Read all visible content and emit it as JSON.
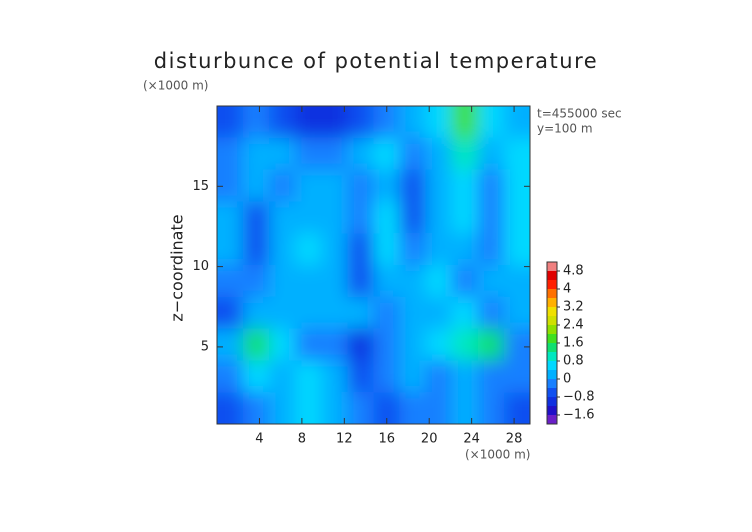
{
  "chart_data": {
    "type": "contour",
    "title": "disturbunce of potential temperature",
    "y_unit": "(×1000 m)",
    "x_unit": "(×1000 m)",
    "ylabel": "z−coordinate",
    "annotations": [
      "t=455000 sec",
      "y=100 m"
    ],
    "xlim": [
      0,
      29.5
    ],
    "ylim": [
      0.2,
      20
    ],
    "xticks": [
      4,
      8,
      12,
      16,
      20,
      24,
      28
    ],
    "yticks": [
      5,
      10,
      15
    ],
    "z": [
      [
        -0.8,
        -0.4,
        -0.8,
        -1.2,
        -1.2,
        -0.8,
        -0.4,
        0,
        0.4,
        1.6,
        0.4,
        0
      ],
      [
        -0.4,
        0,
        0,
        -0.4,
        -0.4,
        0,
        0.4,
        -0.4,
        0,
        0.8,
        0,
        0.4
      ],
      [
        -0.4,
        0,
        -0.4,
        0,
        0,
        -0.4,
        0,
        -0.8,
        0,
        0.4,
        -0.4,
        0.4
      ],
      [
        0,
        -0.8,
        0,
        0,
        0,
        -0.4,
        0.4,
        -0.8,
        0,
        0.4,
        -0.4,
        0.4
      ],
      [
        0,
        -0.8,
        0,
        0.4,
        0,
        -0.8,
        0.4,
        -0.4,
        0,
        0,
        -0.4,
        0.4
      ],
      [
        -0.4,
        -0.4,
        0,
        0,
        0,
        -0.8,
        0,
        0,
        0.4,
        -0.4,
        0,
        0
      ],
      [
        -0.8,
        0,
        0,
        0,
        0,
        0,
        -0.4,
        0,
        0,
        0.4,
        -0.4,
        0
      ],
      [
        0,
        1.2,
        0.4,
        -0.4,
        -0.4,
        -1.2,
        -0.4,
        0,
        0.4,
        0.8,
        1.2,
        -0.4
      ],
      [
        -0.4,
        0.4,
        0,
        0.4,
        0,
        -0.8,
        -0.4,
        0,
        -0.4,
        0,
        -0.4,
        -0.4
      ],
      [
        -0.8,
        -0.4,
        0,
        0.4,
        0,
        -0.4,
        -0.8,
        -0.4,
        -0.4,
        0,
        -0.4,
        -0.8
      ]
    ],
    "colorbar": {
      "lim": [
        -2,
        5.2
      ],
      "step": 0.4,
      "colors": [
        "#6a1fc8",
        "#2010c8",
        "#1030e0",
        "#1050f0",
        "#1880ff",
        "#00b0ff",
        "#00d8ff",
        "#00e8c0",
        "#10e070",
        "#40e020",
        "#90e000",
        "#d0e000",
        "#f0e000",
        "#ffb000",
        "#ff7000",
        "#ff2000",
        "#e00000",
        "#f08080"
      ],
      "ticks": [
        4.8,
        4,
        3.2,
        2.4,
        1.6,
        0.8,
        0,
        {
          "value": -0.8,
          "label": "−0.8"
        },
        {
          "value": -1.6,
          "label": "−1.6"
        }
      ]
    }
  }
}
